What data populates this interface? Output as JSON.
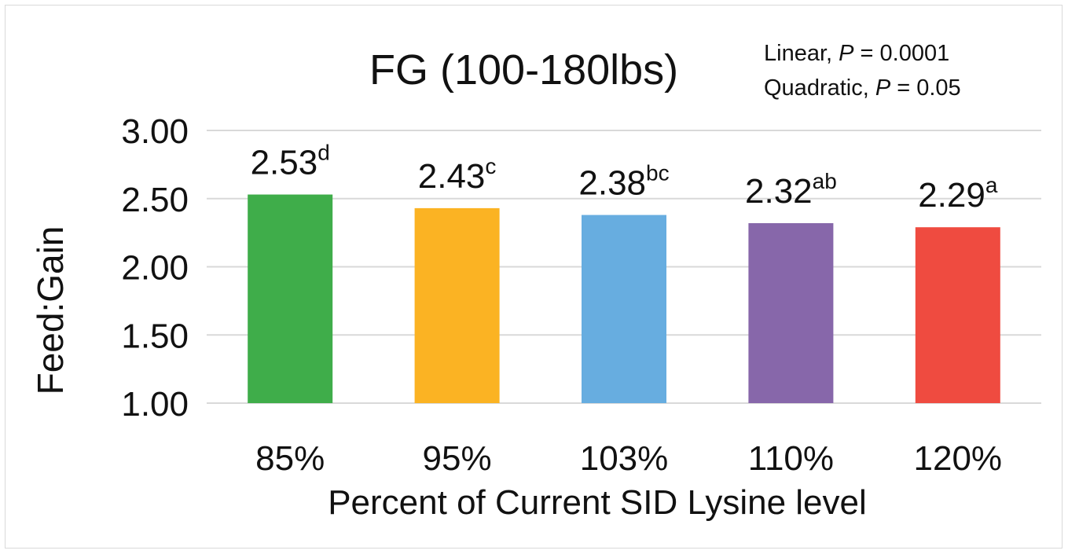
{
  "chart_data": {
    "type": "bar",
    "title": "FG (100-180lbs)",
    "xlabel": "Percent of Current SID Lysine level",
    "ylabel": "Feed:Gain",
    "ylim": [
      1.0,
      3.0
    ],
    "yticks": [
      "1.00",
      "1.50",
      "2.00",
      "2.50",
      "3.00"
    ],
    "grid": true,
    "legend": "none",
    "categories": [
      "85%",
      "95%",
      "103%",
      "110%",
      "120%"
    ],
    "values": [
      2.53,
      2.43,
      2.38,
      2.32,
      2.29
    ],
    "value_labels": [
      "2.53",
      "2.43",
      "2.38",
      "2.32",
      "2.29"
    ],
    "superscripts": [
      "d",
      "c",
      "bc",
      "ab",
      "a"
    ],
    "colors": [
      "#3fad4a",
      "#fbb323",
      "#67ade0",
      "#8767aa",
      "#ef4b40"
    ],
    "annotations": [
      {
        "prefix": "Linear, ",
        "italic": "P",
        "suffix": " = 0.0001"
      },
      {
        "prefix": "Quadratic, ",
        "italic": "P",
        "suffix": " = 0.05"
      }
    ]
  }
}
